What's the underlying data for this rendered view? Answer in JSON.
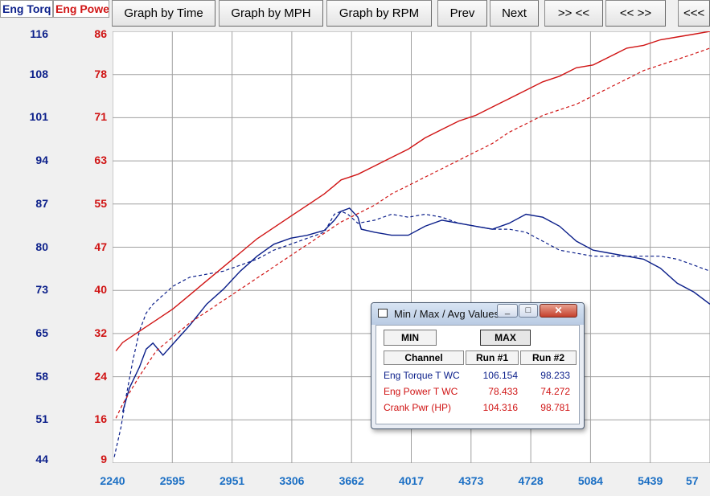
{
  "axes_headers": {
    "torque": "Eng Torq",
    "power": "Eng Powe"
  },
  "toolbar": {
    "buttons": [
      "Graph by Time",
      "Graph by MPH",
      "Graph by RPM",
      "Prev",
      "Next",
      ">> <<",
      "<< >>",
      "<<<"
    ]
  },
  "colors": {
    "torque": "#0b1f8a",
    "power": "#d01414",
    "xaxis": "#1b6fc4",
    "grid": "#a0a0a0"
  },
  "chart_data": {
    "type": "line",
    "xlabel": "",
    "x_ticks": [
      "2240",
      "2595",
      "2951",
      "3306",
      "3662",
      "4017",
      "4373",
      "4728",
      "5084",
      "5439",
      "57"
    ],
    "xlim": [
      2240,
      5795
    ],
    "left_axis": {
      "name": "Eng Torq",
      "ticks": [
        "116",
        "108",
        "101",
        "94",
        "87",
        "80",
        "73",
        "65",
        "58",
        "51",
        "44"
      ],
      "ylim": [
        44,
        116
      ]
    },
    "right_axis": {
      "name": "Eng Powe",
      "ticks": [
        "86",
        "78",
        "71",
        "63",
        "55",
        "47",
        "40",
        "32",
        "24",
        "16",
        "9"
      ],
      "ylim": [
        9,
        86
      ]
    },
    "series": [
      {
        "name": "Eng Torque T WC",
        "run": "Run #1",
        "axis": "torque",
        "style": "solid",
        "x": [
          2300,
          2340,
          2400,
          2440,
          2480,
          2540,
          2620,
          2700,
          2800,
          2900,
          3000,
          3100,
          3200,
          3300,
          3400,
          3500,
          3560,
          3600,
          3650,
          3700,
          3720,
          3800,
          3900,
          4000,
          4100,
          4200,
          4300,
          4400,
          4500,
          4600,
          4700,
          4800,
          4900,
          5000,
          5100,
          5200,
          5300,
          5400,
          5500,
          5600,
          5700,
          5795
        ],
        "y": [
          52.5,
          56.5,
          60,
          63,
          64,
          62,
          64.5,
          67,
          70.5,
          73,
          76,
          78.5,
          80.5,
          81.5,
          82,
          82.8,
          84.5,
          86,
          86.5,
          85,
          83,
          82.5,
          82,
          82,
          83.5,
          84.5,
          84,
          83.5,
          83,
          84,
          85.5,
          85,
          83.5,
          81,
          79.5,
          79,
          78.5,
          78,
          76.5,
          74,
          72.5,
          70.5
        ]
      },
      {
        "name": "Eng Torque T WC",
        "run": "Run #2",
        "axis": "torque",
        "style": "dashed",
        "x": [
          2250,
          2290,
          2320,
          2360,
          2400,
          2440,
          2480,
          2540,
          2600,
          2700,
          2800,
          2900,
          3000,
          3100,
          3200,
          3300,
          3400,
          3500,
          3560,
          3600,
          3640,
          3700,
          3800,
          3900,
          4000,
          4100,
          4200,
          4300,
          4400,
          4500,
          4600,
          4700,
          4800,
          4900,
          5000,
          5100,
          5200,
          5300,
          5400,
          5500,
          5600,
          5700,
          5795
        ],
        "y": [
          45,
          50,
          55,
          61,
          66,
          69,
          70.5,
          72,
          73.5,
          75,
          75.5,
          76,
          77,
          78,
          79.5,
          80.5,
          81.5,
          82.5,
          85.5,
          86,
          85.5,
          84,
          84.5,
          85.5,
          85,
          85.5,
          85,
          84,
          83.5,
          83,
          83,
          82.5,
          81,
          79.5,
          79,
          78.5,
          78.5,
          78.5,
          78.5,
          78.5,
          78,
          77,
          76
        ]
      },
      {
        "name": "Eng Power T WC",
        "run": "Run #1",
        "axis": "power",
        "style": "solid",
        "x": [
          2260,
          2300,
          2400,
          2500,
          2600,
          2700,
          2800,
          2900,
          3000,
          3100,
          3200,
          3300,
          3400,
          3500,
          3560,
          3600,
          3650,
          3700,
          3800,
          3900,
          4000,
          4100,
          4200,
          4300,
          4400,
          4500,
          4600,
          4700,
          4800,
          4900,
          5000,
          5100,
          5200,
          5300,
          5400,
          5500,
          5600,
          5700,
          5795
        ],
        "y": [
          29,
          30.5,
          32.5,
          34.5,
          36.5,
          39,
          41.5,
          44,
          46.5,
          49,
          51,
          53,
          55,
          57,
          58.5,
          59.5,
          60,
          60.5,
          62,
          63.5,
          65,
          67,
          68.5,
          70,
          71,
          72.5,
          74,
          75.5,
          77,
          78,
          79.5,
          80,
          81.5,
          83,
          83.5,
          84.5,
          85,
          85.5,
          86
        ]
      },
      {
        "name": "Eng Power T WC",
        "run": "Run #2",
        "axis": "power",
        "style": "dashed",
        "x": [
          2260,
          2300,
          2400,
          2500,
          2600,
          2700,
          2800,
          2900,
          3000,
          3100,
          3200,
          3300,
          3400,
          3500,
          3600,
          3700,
          3800,
          3900,
          4000,
          4100,
          4200,
          4300,
          4400,
          4500,
          4600,
          4700,
          4800,
          4900,
          5000,
          5100,
          5200,
          5300,
          5400,
          5500,
          5600,
          5700,
          5795
        ],
        "y": [
          17,
          19.5,
          24.5,
          29,
          31.5,
          34,
          36,
          38,
          40,
          42,
          44,
          46,
          48,
          50,
          52,
          53.5,
          55,
          57,
          58.5,
          60,
          61.5,
          63,
          64.5,
          66,
          68,
          69.5,
          71,
          72,
          73,
          74.5,
          76,
          77.5,
          79,
          80,
          81,
          82,
          83
        ]
      }
    ]
  },
  "dialog": {
    "title": "Min / Max / Avg Values",
    "window_buttons": [
      "_",
      "□",
      "✕"
    ],
    "min_label": "MIN",
    "max_label": "MAX",
    "columns": [
      "Channel",
      "Run #1",
      "Run #2"
    ],
    "rows": [
      {
        "channel": "Eng Torque T WC",
        "run1": "106.154",
        "run2": "98.233",
        "color": "#0b1f8a"
      },
      {
        "channel": "Eng Power T WC",
        "run1": "78.433",
        "run2": "74.272",
        "color": "#d01414"
      },
      {
        "channel": "Crank Pwr (HP)",
        "run1": "104.316",
        "run2": "98.781",
        "color": "#d01414"
      }
    ]
  }
}
